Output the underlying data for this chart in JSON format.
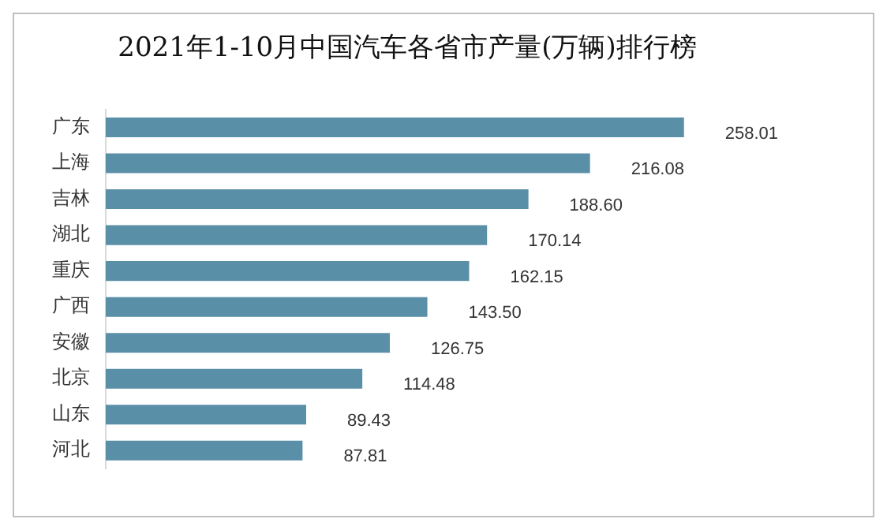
{
  "chart_data": {
    "type": "bar",
    "orientation": "horizontal",
    "title": "2021年1-10月中国汽车各省市产量(万辆)排行榜",
    "categories": [
      "广东",
      "上海",
      "吉林",
      "湖北",
      "重庆",
      "广西",
      "安徽",
      "北京",
      "山东",
      "河北"
    ],
    "values": [
      258.01,
      216.08,
      188.6,
      170.14,
      162.15,
      143.5,
      126.75,
      114.48,
      89.43,
      87.81
    ],
    "value_labels": [
      "258.01",
      "216.08",
      "188.60",
      "170.14",
      "162.15",
      "143.50",
      "126.75",
      "114.48",
      "89.43",
      "87.81"
    ],
    "color": "#5a8fa8",
    "grid": false,
    "legend": false,
    "tick_labels": "y"
  }
}
